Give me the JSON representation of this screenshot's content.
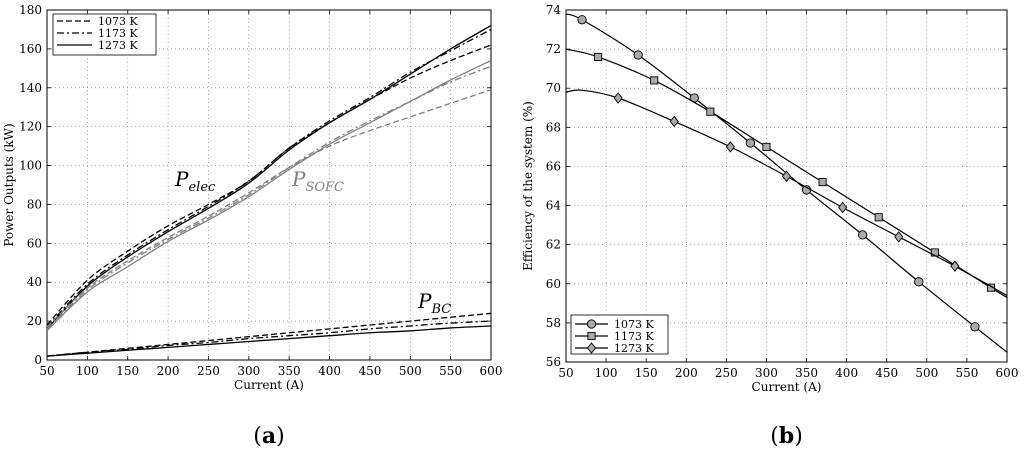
{
  "chart_data": [
    {
      "type": "line",
      "panel_label": "(a)",
      "xlabel": "Current (A)",
      "ylabel": "Power Outputs (kW)",
      "xlim": [
        50,
        600
      ],
      "ylim": [
        0,
        180
      ],
      "xticks": [
        50,
        100,
        150,
        200,
        250,
        300,
        350,
        400,
        450,
        500,
        550,
        600
      ],
      "yticks": [
        0,
        20,
        40,
        60,
        80,
        100,
        120,
        140,
        160,
        180
      ],
      "grid": true,
      "legend_position": "top-left",
      "legend": [
        {
          "label": "1073 K",
          "style": "dashed"
        },
        {
          "label": "1173 K",
          "style": "dashdot"
        },
        {
          "label": "1273 K",
          "style": "solid"
        }
      ],
      "annotations": [
        {
          "text": "P",
          "sub": "elec",
          "color": "#000000"
        },
        {
          "text": "P",
          "sub": "SOFC",
          "color": "#808080"
        },
        {
          "text": "P",
          "sub": "BC",
          "color": "#000000"
        }
      ],
      "x": [
        50,
        100,
        150,
        200,
        250,
        300,
        350,
        400,
        450,
        500,
        550,
        600
      ],
      "series": [
        {
          "group": "P_elec",
          "temp": "1073 K",
          "style": "dashed",
          "color": "#000000",
          "values": [
            18,
            41,
            56,
            69,
            80,
            92,
            109,
            122,
            134,
            145,
            154,
            162
          ]
        },
        {
          "group": "P_elec",
          "temp": "1173 K",
          "style": "dashdot",
          "color": "#000000",
          "values": [
            17,
            39,
            54,
            67,
            79,
            92,
            109,
            123,
            135,
            148,
            159,
            170
          ]
        },
        {
          "group": "P_elec",
          "temp": "1273 K",
          "style": "solid",
          "color": "#000000",
          "values": [
            16,
            38,
            53,
            66,
            78,
            91,
            108,
            122,
            134,
            147,
            160,
            172
          ]
        },
        {
          "group": "P_SOFC",
          "temp": "1073 K",
          "style": "dashed",
          "color": "#808080",
          "values": [
            17,
            37,
            51,
            63,
            74,
            86,
            99,
            110,
            118,
            125,
            132,
            139
          ]
        },
        {
          "group": "P_SOFC",
          "temp": "1173 K",
          "style": "dashdot",
          "color": "#808080",
          "values": [
            16,
            36,
            50,
            62,
            73,
            85,
            99,
            112,
            123,
            133,
            143,
            151
          ]
        },
        {
          "group": "P_SOFC",
          "temp": "1273 K",
          "style": "solid",
          "color": "#808080",
          "values": [
            15,
            35,
            48,
            61,
            72,
            84,
            98,
            111,
            122,
            133,
            144,
            154
          ]
        },
        {
          "group": "P_BC",
          "temp": "1073 K",
          "style": "dashed",
          "color": "#000000",
          "values": [
            2,
            4,
            6,
            8,
            10,
            12,
            14,
            16,
            18,
            20,
            22,
            24
          ]
        },
        {
          "group": "P_BC",
          "temp": "1173 K",
          "style": "dashdot",
          "color": "#000000",
          "values": [
            2,
            4,
            5.5,
            7.5,
            9,
            11,
            12.5,
            14,
            16,
            17.5,
            19,
            20
          ]
        },
        {
          "group": "P_BC",
          "temp": "1273 K",
          "style": "solid",
          "color": "#000000",
          "values": [
            2,
            3.5,
            5,
            6.5,
            8,
            9.5,
            11,
            12.5,
            14,
            15,
            16.5,
            17.5
          ]
        }
      ]
    },
    {
      "type": "line",
      "panel_label": "(b)",
      "xlabel": "Current (A)",
      "ylabel": "Efficiency of the system (%)",
      "xlim": [
        50,
        600
      ],
      "ylim": [
        56,
        74
      ],
      "xticks": [
        50,
        100,
        150,
        200,
        250,
        300,
        350,
        400,
        450,
        500,
        550,
        600
      ],
      "yticks": [
        56,
        58,
        60,
        62,
        64,
        66,
        68,
        70,
        72,
        74
      ],
      "grid": true,
      "legend_position": "bottom-left",
      "series": [
        {
          "name": "1073 K",
          "marker": "circle",
          "x": [
            50,
            70,
            140,
            210,
            280,
            350,
            420,
            490,
            560,
            600
          ],
          "y": [
            73.8,
            73.5,
            71.7,
            69.5,
            67.2,
            64.8,
            62.5,
            60.1,
            57.8,
            56.5
          ],
          "marker_x": [
            70,
            140,
            210,
            280,
            350,
            420,
            490,
            560
          ]
        },
        {
          "name": "1173 K",
          "marker": "square",
          "x": [
            50,
            90,
            160,
            230,
            300,
            370,
            440,
            510,
            580,
            600
          ],
          "y": [
            72.0,
            71.6,
            70.4,
            68.8,
            67.0,
            65.2,
            63.4,
            61.6,
            59.8,
            59.3
          ],
          "marker_x": [
            90,
            160,
            230,
            300,
            370,
            440,
            510,
            580
          ]
        },
        {
          "name": "1273 K",
          "marker": "diamond",
          "x": [
            50,
            70,
            115,
            185,
            255,
            325,
            395,
            465,
            535,
            600
          ],
          "y": [
            69.8,
            69.9,
            69.5,
            68.3,
            67.0,
            65.5,
            63.9,
            62.4,
            60.9,
            59.4
          ],
          "marker_x": [
            115,
            185,
            255,
            325,
            395,
            465,
            535
          ]
        }
      ]
    }
  ]
}
